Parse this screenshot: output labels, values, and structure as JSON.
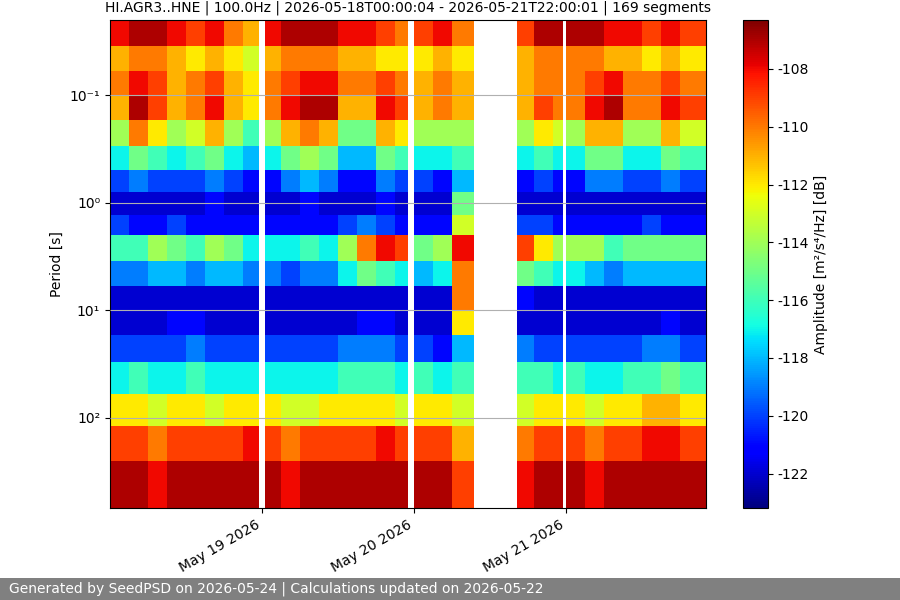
{
  "chart_data": {
    "type": "heatmap",
    "title": "HI.AGR3..HNE | 100.0Hz | 2026-05-18T00:00:04 - 2026-05-21T22:00:01 | 169 segments",
    "ylabel": "Period [s]",
    "footer": "Generated by SeedPSD on 2026-05-24 | Calculations updated on 2026-05-22",
    "log": "y",
    "grid": true,
    "x_edges": [
      0,
      3,
      6,
      9,
      12,
      15,
      18,
      21,
      23.5,
      24.5,
      27,
      30,
      33,
      36,
      39,
      42,
      45,
      47,
      48,
      51,
      54,
      57.4,
      64.2,
      67,
      70,
      71.5,
      72,
      75,
      78,
      81,
      84,
      87,
      90,
      94
    ],
    "y_edges": [
      0.02,
      0.035,
      0.06,
      0.1,
      0.17,
      0.3,
      0.5,
      0.8,
      1.3,
      2,
      3.5,
      6,
      10,
      17,
      30,
      60,
      120,
      250,
      692
    ],
    "xlim": [
      0,
      94
    ],
    "xticks": [
      {
        "value": 24,
        "label": "May 19 2026"
      },
      {
        "value": 48,
        "label": "May 20 2026"
      },
      {
        "value": 72,
        "label": "May 21 2026"
      }
    ],
    "ylim": [
      692,
      0.02
    ],
    "yticks": [
      {
        "value": 0.1,
        "label": "10⁻¹"
      },
      {
        "value": 1,
        "label": "10⁰"
      },
      {
        "value": 10,
        "label": "10¹"
      },
      {
        "value": 100,
        "label": "10²"
      }
    ],
    "cells": [
      [
        -108,
        -107,
        -107,
        -108,
        -109,
        -108,
        -110,
        -111,
        null,
        -108,
        -107,
        -107,
        -107,
        -108,
        -108,
        -109,
        -110,
        null,
        -109,
        -108,
        -110,
        null,
        -109,
        -107,
        -107,
        null,
        -107,
        -107,
        -108,
        -108,
        -109,
        -108,
        -109
      ],
      [
        -111,
        -110,
        -110,
        -111,
        -112,
        -111,
        -112,
        -113,
        null,
        -111,
        -110,
        -110,
        -110,
        -111,
        -111,
        -112,
        -112,
        null,
        -112,
        -111,
        -112,
        null,
        -111,
        -110,
        -110,
        null,
        -110,
        -110,
        -111,
        -111,
        -112,
        -111,
        -112
      ],
      [
        -110,
        -108,
        -109,
        -111,
        -110,
        -109,
        -111,
        -112,
        null,
        -110,
        -109,
        -108,
        -108,
        -110,
        -110,
        -109,
        -110,
        null,
        -111,
        -110,
        -111,
        null,
        -111,
        -110,
        -110,
        null,
        -110,
        -109,
        -108,
        -110,
        -110,
        -109,
        -110
      ],
      [
        -111,
        -107,
        -109,
        -111,
        -110,
        -108,
        -111,
        -112,
        null,
        -110,
        -108,
        -107,
        -107,
        -111,
        -111,
        -108,
        -109,
        null,
        -111,
        -110,
        -111,
        null,
        -111,
        -109,
        -110,
        null,
        -110,
        -108,
        -107,
        -110,
        -110,
        -108,
        -109
      ],
      [
        -114,
        -110,
        -112,
        -114,
        -113,
        -111,
        -114,
        -116,
        null,
        -114,
        -111,
        -110,
        -111,
        -115,
        -115,
        -111,
        -112,
        null,
        -114,
        -114,
        -114,
        null,
        -114,
        -112,
        -113,
        null,
        -114,
        -111,
        -111,
        -114,
        -114,
        -111,
        -113
      ],
      [
        -117,
        -115,
        -116,
        -117,
        -116,
        -115,
        -117,
        -118,
        null,
        -117,
        -115,
        -114,
        -115,
        -118,
        -118,
        -115,
        -116,
        null,
        -117,
        -117,
        -116,
        null,
        -117,
        -116,
        -117,
        null,
        -117,
        -115,
        -115,
        -117,
        -117,
        -115,
        -116
      ],
      [
        -120,
        -119,
        -120,
        -120,
        -120,
        -119,
        -120,
        -121,
        null,
        -121,
        -119,
        -118,
        -119,
        -121,
        -121,
        -119,
        -120,
        null,
        -120,
        -121,
        -118,
        null,
        -121,
        -120,
        -121,
        null,
        -121,
        -119,
        -119,
        -120,
        -120,
        -119,
        -120
      ],
      [
        -122,
        -122,
        -122,
        -122,
        -122,
        -121,
        -122,
        -122,
        null,
        -122,
        -122,
        -121,
        -122,
        -122,
        -122,
        -121,
        -122,
        null,
        -122,
        -122,
        -115,
        null,
        -122,
        -122,
        -122,
        null,
        -122,
        -122,
        -122,
        -122,
        -122,
        -122,
        -122
      ],
      [
        -120,
        -121,
        -121,
        -120,
        -121,
        -121,
        -121,
        -121,
        null,
        -121,
        -121,
        -121,
        -121,
        -120,
        -119,
        -120,
        -121,
        null,
        -121,
        -121,
        -113,
        null,
        -120,
        -120,
        -121,
        null,
        -121,
        -121,
        -121,
        -121,
        -120,
        -121,
        -121
      ],
      [
        -116,
        -116,
        -114,
        -115,
        -116,
        -114,
        -115,
        -117,
        null,
        -117,
        -117,
        -116,
        -117,
        -114,
        -110,
        -108,
        -109,
        null,
        -115,
        -114,
        -108,
        null,
        -109,
        -112,
        -114,
        null,
        -114,
        -114,
        -116,
        -115,
        -115,
        -115,
        -115
      ],
      [
        -119,
        -119,
        -118,
        -118,
        -119,
        -118,
        -118,
        -119,
        null,
        -119,
        -120,
        -119,
        -119,
        -117,
        -115,
        -116,
        -117,
        null,
        -118,
        -117,
        -110,
        null,
        -115,
        -116,
        -117,
        null,
        -117,
        -118,
        -119,
        -118,
        -118,
        -118,
        -118
      ],
      [
        -122,
        -122,
        -122,
        -122,
        -122,
        -122,
        -122,
        -122,
        null,
        -122,
        -122,
        -122,
        -122,
        -122,
        -122,
        -122,
        -122,
        null,
        -122,
        -122,
        -110,
        null,
        -121,
        -122,
        -122,
        null,
        -122,
        -122,
        -122,
        -122,
        -122,
        -122,
        -122
      ],
      [
        -122,
        -122,
        -122,
        -121,
        -121,
        -122,
        -122,
        -122,
        null,
        -122,
        -122,
        -122,
        -122,
        -122,
        -121,
        -121,
        -122,
        null,
        -122,
        -122,
        -112,
        null,
        -122,
        -122,
        -122,
        null,
        -122,
        -122,
        -122,
        -122,
        -122,
        -121,
        -122
      ],
      [
        -120,
        -120,
        -120,
        -120,
        -119,
        -120,
        -120,
        -120,
        null,
        -120,
        -120,
        -120,
        -120,
        -119,
        -119,
        -119,
        -120,
        null,
        -120,
        -121,
        -118,
        null,
        -119,
        -120,
        -120,
        null,
        -120,
        -120,
        -120,
        -120,
        -119,
        -119,
        -120
      ],
      [
        -117,
        -116,
        -117,
        -117,
        -116,
        -117,
        -117,
        -117,
        null,
        -117,
        -117,
        -117,
        -117,
        -116,
        -116,
        -116,
        -117,
        null,
        -116,
        -117,
        -116,
        null,
        -116,
        -116,
        -117,
        null,
        -116,
        -117,
        -117,
        -116,
        -116,
        -115,
        -116
      ],
      [
        -112,
        -112,
        -113,
        -112,
        -112,
        -113,
        -112,
        -112,
        null,
        -112,
        -113,
        -113,
        -112,
        -112,
        -112,
        -112,
        -113,
        null,
        -112,
        -112,
        -113,
        null,
        -113,
        -112,
        -112,
        null,
        -112,
        -113,
        -112,
        -112,
        -111,
        -111,
        -112
      ],
      [
        -109,
        -109,
        -110,
        -109,
        -109,
        -109,
        -109,
        -108,
        null,
        -109,
        -110,
        -109,
        -109,
        -109,
        -109,
        -108,
        -109,
        null,
        -109,
        -109,
        -111,
        null,
        -110,
        -109,
        -109,
        null,
        -109,
        -110,
        -109,
        -109,
        -108,
        -108,
        -109
      ],
      [
        -107,
        -107,
        -108,
        -107,
        -107,
        -107,
        -107,
        -107,
        null,
        -107,
        -108,
        -107,
        -107,
        -107,
        -107,
        -107,
        -107,
        null,
        -107,
        -107,
        -109,
        null,
        -108,
        -107,
        -107,
        null,
        -107,
        -108,
        -107,
        -107,
        -107,
        -107,
        -107
      ]
    ],
    "colorbar": {
      "label": "Amplitude [m²/s⁴/Hz] [dB]",
      "range": [
        -123.2,
        -106.3
      ],
      "ticks": [
        -122,
        -120,
        -118,
        -116,
        -114,
        -112,
        -110,
        -108
      ]
    }
  }
}
